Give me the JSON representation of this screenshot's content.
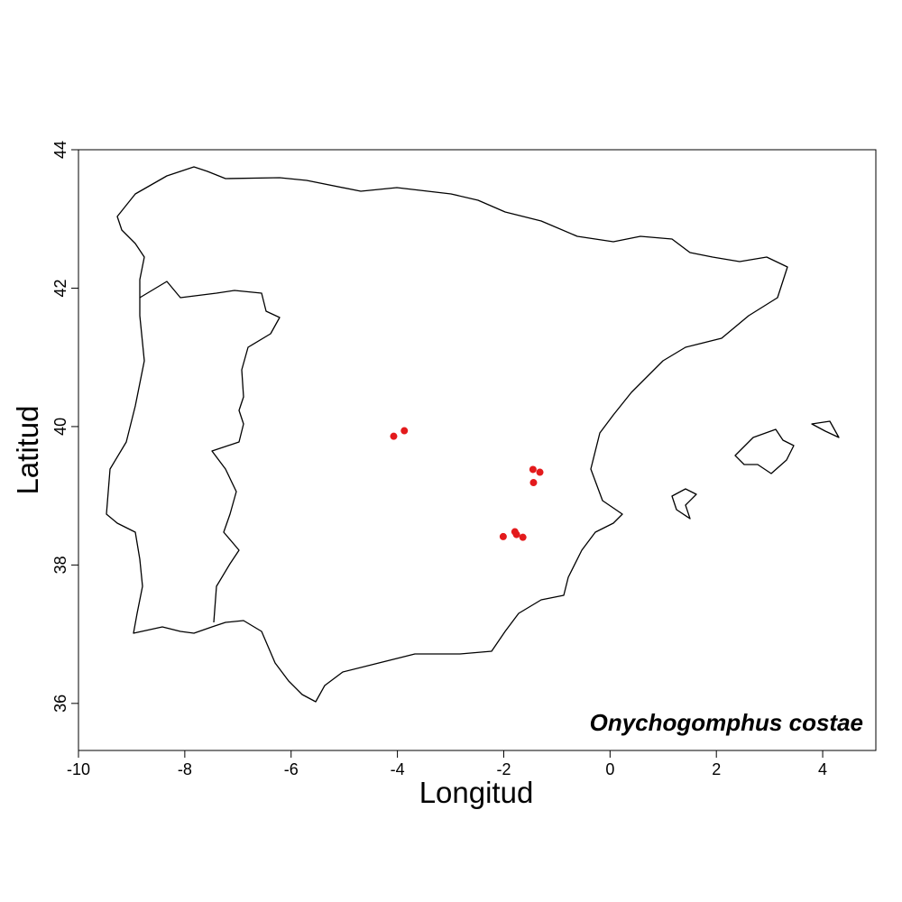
{
  "chart_data": {
    "type": "scatter",
    "title": "Onychogomphus costae",
    "x_label": "Longitud",
    "y_label": "Latitud",
    "xlim": [
      -10,
      5
    ],
    "ylim": [
      35.32,
      44
    ],
    "xticks": [
      -10,
      -8,
      -6,
      -4,
      -2,
      0,
      2,
      4
    ],
    "yticks": [
      36,
      38,
      40,
      42,
      44
    ],
    "color": "#e31a1c",
    "x": [
      -4.07,
      -3.87,
      -1.45,
      -1.32,
      -1.44,
      -2.01,
      -1.79,
      -1.76,
      -1.64
    ],
    "values": [
      39.86,
      39.94,
      39.38,
      39.34,
      39.19,
      38.41,
      38.48,
      38.44,
      38.4
    ]
  }
}
